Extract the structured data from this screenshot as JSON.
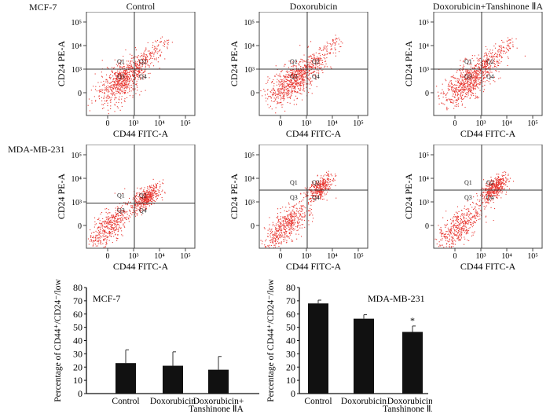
{
  "figure": {
    "row_labels": [
      "MCF-7",
      "MDA-MB-231"
    ],
    "column_titles": [
      "Control",
      "Doxorubicin",
      "Doxorubicin+Tanshinone ⅡA"
    ]
  },
  "chart_data": [
    {
      "type": "scatter",
      "panels": [
        {
          "cell_line": "MCF-7",
          "condition": "Control"
        },
        {
          "cell_line": "MCF-7",
          "condition": "Doxorubicin"
        },
        {
          "cell_line": "MCF-7",
          "condition": "Doxorubicin+Tanshinone ⅡA"
        },
        {
          "cell_line": "MDA-MB-231",
          "condition": "Control"
        },
        {
          "cell_line": "MDA-MB-231",
          "condition": "Doxorubicin"
        },
        {
          "cell_line": "MDA-MB-231",
          "condition": "Doxorubicin+Tanshinone ⅡA"
        }
      ],
      "xlabel": "CD44 FITC-A",
      "ylabel": "CD24 PE-A",
      "x_ticks": [
        "0",
        "10³",
        "10⁴",
        "10⁵"
      ],
      "y_ticks": [
        "0",
        "10³",
        "10⁴",
        "10⁵"
      ],
      "x_scale": "biexponential",
      "y_scale": "biexponential",
      "quadrant_labels": [
        "Q1",
        "Q2",
        "Q3",
        "Q4"
      ],
      "point_color": "#e8352f"
    },
    {
      "type": "bar",
      "title": "MCF-7",
      "categories": [
        "Control",
        "Doxorubicin",
        "Doxorubicin+\nTanshinone ⅡA"
      ],
      "category_lines": [
        [
          "Control"
        ],
        [
          "Doxorubicin"
        ],
        [
          "Doxorubicin+",
          "Tanshinone ⅡA"
        ]
      ],
      "values": [
        23,
        21,
        18
      ],
      "errors": [
        10,
        10.5,
        10
      ],
      "ylabel": "Percentage of CD44⁺/CD24⁻/low",
      "ylim": [
        0,
        80
      ],
      "yticks": [
        0,
        10,
        20,
        30,
        40,
        50,
        60,
        70,
        80
      ],
      "annotations": [
        "",
        "",
        ""
      ],
      "bar_color": "#111111"
    },
    {
      "type": "bar",
      "title": "MDA-MB-231",
      "categories": [
        "Control",
        "Doxorubicin",
        "Doxorubicin+\nTanshinone ⅡA"
      ],
      "category_lines": [
        [
          "Control"
        ],
        [
          "Doxorubicin"
        ],
        [
          "Doxorubicin+",
          "Tanshinone ⅡA"
        ]
      ],
      "values": [
        68,
        56.5,
        46.5
      ],
      "errors": [
        2.5,
        3,
        4.5
      ],
      "ylabel": "Percentage of CD44⁺/CD24⁻/low",
      "ylim": [
        0,
        80
      ],
      "yticks": [
        0,
        10,
        20,
        30,
        40,
        50,
        60,
        70,
        80
      ],
      "annotations": [
        "",
        "",
        "*"
      ],
      "bar_color": "#111111"
    }
  ]
}
